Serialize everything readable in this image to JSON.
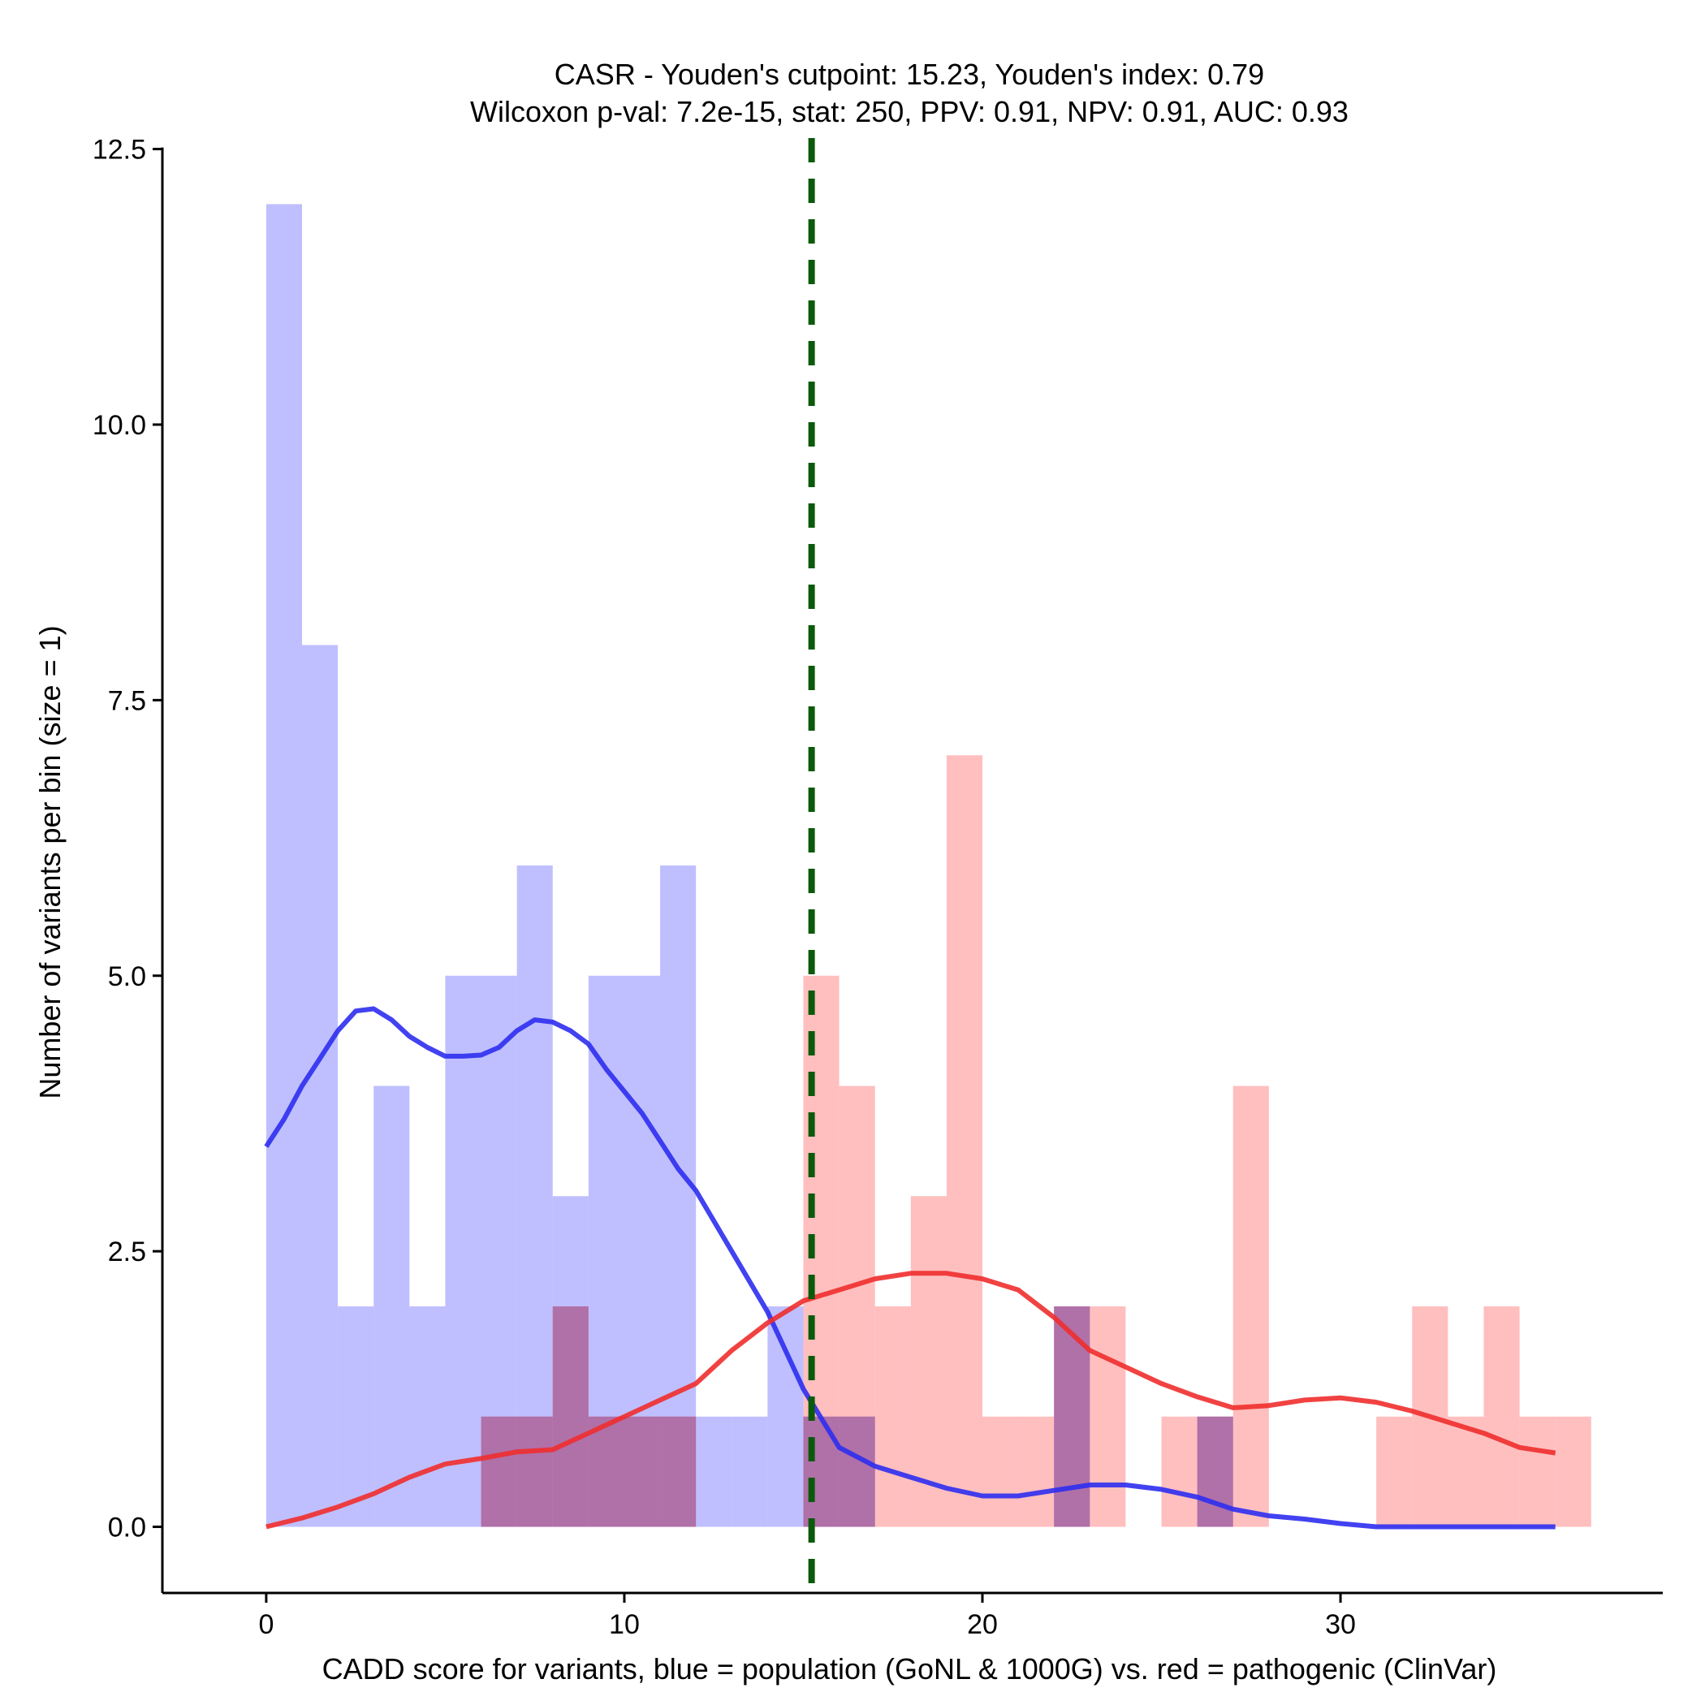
{
  "chart_data": {
    "type": "histogram",
    "title_line1": "CASR - Youden's cutpoint: 15.23, Youden's index: 0.79",
    "title_line2": "Wilcoxon p-val: 7.2e-15, stat: 250, PPV: 0.91, NPV: 0.91, AUC: 0.93",
    "xlabel": "CADD score for variants, blue = population (GoNL & 1000G) vs. red = pathogenic (ClinVar)",
    "ylabel": "Number of variants per bin (size = 1)",
    "xlim": [
      -2.9,
      39
    ],
    "ylim": [
      -0.6,
      12.6
    ],
    "x_ticks": [
      0,
      10,
      20,
      30
    ],
    "x_tick_labels": [
      "0",
      "10",
      "20",
      "30"
    ],
    "y_ticks": [
      0,
      2.5,
      5,
      7.5,
      10,
      12.5
    ],
    "y_tick_labels": [
      "0.0",
      "2.5",
      "5.0",
      "7.5",
      "10.0",
      "12.5"
    ],
    "bin_size": 1,
    "cutpoint": 15.23,
    "series": [
      {
        "name": "population (GoNL & 1000G)",
        "color": "#8080ff",
        "bins": [
          {
            "x0": 0,
            "count": 12
          },
          {
            "x0": 1,
            "count": 8
          },
          {
            "x0": 2,
            "count": 2
          },
          {
            "x0": 3,
            "count": 4
          },
          {
            "x0": 4,
            "count": 2
          },
          {
            "x0": 5,
            "count": 5
          },
          {
            "x0": 6,
            "count": 5
          },
          {
            "x0": 7,
            "count": 6
          },
          {
            "x0": 8,
            "count": 3
          },
          {
            "x0": 9,
            "count": 5
          },
          {
            "x0": 10,
            "count": 5
          },
          {
            "x0": 11,
            "count": 6
          },
          {
            "x0": 12,
            "count": 1
          },
          {
            "x0": 13,
            "count": 1
          },
          {
            "x0": 14,
            "count": 2
          },
          {
            "x0": 15,
            "count": 1
          },
          {
            "x0": 16,
            "count": 1
          },
          {
            "x0": 22,
            "count": 2
          },
          {
            "x0": 26,
            "count": 1
          }
        ],
        "density_x": [
          0,
          0.5,
          1,
          1.5,
          2,
          2.5,
          3,
          3.5,
          4,
          4.5,
          5,
          5.5,
          6,
          6.5,
          7,
          7.5,
          8,
          8.5,
          9,
          9.5,
          10,
          10.5,
          11,
          11.5,
          12,
          13,
          14,
          15,
          16,
          17,
          18,
          19,
          20,
          21,
          22,
          23,
          24,
          25,
          26,
          27,
          28,
          29,
          30,
          31,
          32,
          33,
          34,
          35,
          36
        ],
        "density_y": [
          3.45,
          3.7,
          4.0,
          4.25,
          4.5,
          4.68,
          4.7,
          4.6,
          4.45,
          4.35,
          4.27,
          4.27,
          4.28,
          4.35,
          4.5,
          4.6,
          4.58,
          4.5,
          4.38,
          4.15,
          3.95,
          3.75,
          3.5,
          3.25,
          3.05,
          2.5,
          1.95,
          1.25,
          0.72,
          0.55,
          0.45,
          0.35,
          0.28,
          0.28,
          0.33,
          0.38,
          0.38,
          0.34,
          0.27,
          0.16,
          0.1,
          0.07,
          0.03,
          0.0,
          0.0,
          0.0,
          0.0,
          0.0,
          0.0
        ]
      },
      {
        "name": "pathogenic (ClinVar)",
        "color": "#ff8080",
        "bins": [
          {
            "x0": 6,
            "count": 1
          },
          {
            "x0": 7,
            "count": 1
          },
          {
            "x0": 8,
            "count": 2
          },
          {
            "x0": 9,
            "count": 1
          },
          {
            "x0": 10,
            "count": 1
          },
          {
            "x0": 11,
            "count": 1
          },
          {
            "x0": 15,
            "count": 5
          },
          {
            "x0": 16,
            "count": 4
          },
          {
            "x0": 17,
            "count": 2
          },
          {
            "x0": 18,
            "count": 3
          },
          {
            "x0": 19,
            "count": 7
          },
          {
            "x0": 20,
            "count": 1
          },
          {
            "x0": 21,
            "count": 1
          },
          {
            "x0": 22,
            "count": 2
          },
          {
            "x0": 23,
            "count": 2
          },
          {
            "x0": 25,
            "count": 1
          },
          {
            "x0": 26,
            "count": 1
          },
          {
            "x0": 27,
            "count": 4
          },
          {
            "x0": 31,
            "count": 1
          },
          {
            "x0": 32,
            "count": 2
          },
          {
            "x0": 33,
            "count": 1
          },
          {
            "x0": 34,
            "count": 2
          },
          {
            "x0": 35,
            "count": 1
          },
          {
            "x0": 36,
            "count": 1
          }
        ],
        "density_x": [
          0,
          1,
          2,
          3,
          4,
          5,
          6,
          7,
          8,
          9,
          10,
          11,
          12,
          13,
          14,
          15,
          16,
          17,
          18,
          19,
          20,
          21,
          22,
          23,
          24,
          25,
          26,
          27,
          28,
          29,
          30,
          31,
          32,
          33,
          34,
          35,
          36
        ],
        "density_y": [
          0.0,
          0.08,
          0.18,
          0.3,
          0.45,
          0.57,
          0.62,
          0.68,
          0.7,
          0.85,
          1.0,
          1.15,
          1.3,
          1.6,
          1.85,
          2.05,
          2.15,
          2.25,
          2.3,
          2.3,
          2.25,
          2.15,
          1.9,
          1.6,
          1.45,
          1.3,
          1.18,
          1.08,
          1.1,
          1.15,
          1.17,
          1.13,
          1.05,
          0.95,
          0.85,
          0.72,
          0.67
        ]
      }
    ],
    "line_colors": {
      "population": "#2e2eef",
      "pathogenic": "#ef2e2e",
      "cutpoint": "#0b5a0b"
    },
    "overlap_color": "#a060a0"
  }
}
